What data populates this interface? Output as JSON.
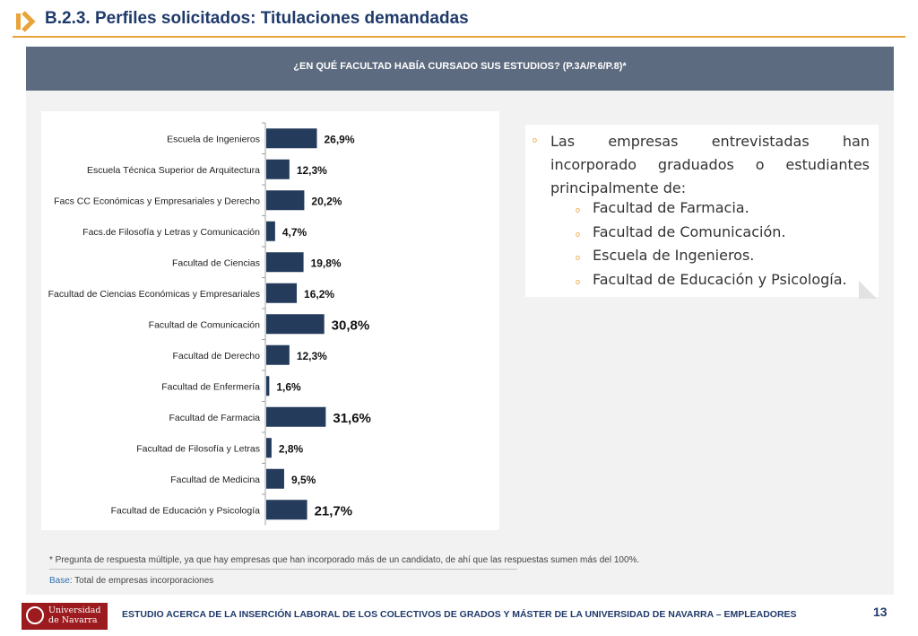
{
  "header": {
    "title": "B.2.3. Perfiles solicitados: Titulaciones demandadas"
  },
  "banner": {
    "question": "¿EN QUÉ FACULTAD HABÍA CURSADO SUS ESTUDIOS? (P.3A/P.6/P.8)*"
  },
  "colors": {
    "bar": "#243b5c",
    "accent": "#e8a33a",
    "title": "#1f3a6b",
    "banner": "#5d6b80"
  },
  "chart_data": {
    "type": "bar",
    "orientation": "horizontal",
    "categories": [
      "Escuela de Ingenieros",
      "Escuela Técnica Superior de Arquitectura",
      "Facs CC Económicas y Empresariales y Derecho",
      "Facs.de Filosofía y Letras y Comunicación",
      "Facultad de Ciencias",
      "Facultad de Ciencias Económicas y Empresariales",
      "Facultad de Comunicación",
      "Facultad de Derecho",
      "Facultad de Enfermería",
      "Facultad de Farmacia",
      "Facultad de Filosofía y Letras",
      "Facultad de Medicina",
      "Facultad de Educación y Psicología"
    ],
    "values": [
      26.9,
      12.3,
      20.2,
      4.7,
      19.8,
      16.2,
      30.8,
      12.3,
      1.6,
      31.6,
      2.8,
      9.5,
      21.7
    ],
    "labels": [
      "26,9%",
      "12,3%",
      "20,2%",
      "4,7%",
      "19,8%",
      "16,2%",
      "30,8%",
      "12,3%",
      "1,6%",
      "31,6%",
      "2,8%",
      "9,5%",
      "21,7%"
    ],
    "highlighted": [
      false,
      false,
      false,
      false,
      false,
      false,
      true,
      false,
      false,
      true,
      false,
      false,
      true
    ],
    "xlim": [
      0,
      100
    ],
    "grid": false,
    "legend": false
  },
  "callout": {
    "intro": "Las empresas entrevistadas han incorporado graduados o estudiantes principalmente de:",
    "bullet_char": "o",
    "items": [
      "Facultad de Farmacia.",
      "Facultad de Comunicación.",
      "Escuela de Ingenieros.",
      "Facultad de Educación y Psicología."
    ]
  },
  "footnote": "* Pregunta de respuesta múltiple, ya que  hay empresas que han incorporado más de un candidato, de  ahí que las respuestas sumen más del 100%.",
  "base": {
    "label": "Base",
    "text": ": Total de empresas  incorporaciones"
  },
  "footer": {
    "logo_line1": "Universidad",
    "logo_line2": "de Navarra",
    "study": "ESTUDIO ACERCA DE LA INSERCIÓN LABORAL DE LOS COLECTIVOS DE GRADOS Y MÁSTER DE LA UNIVERSIDAD DE NAVARRA – EMPLEADORES",
    "page_number": "13"
  }
}
